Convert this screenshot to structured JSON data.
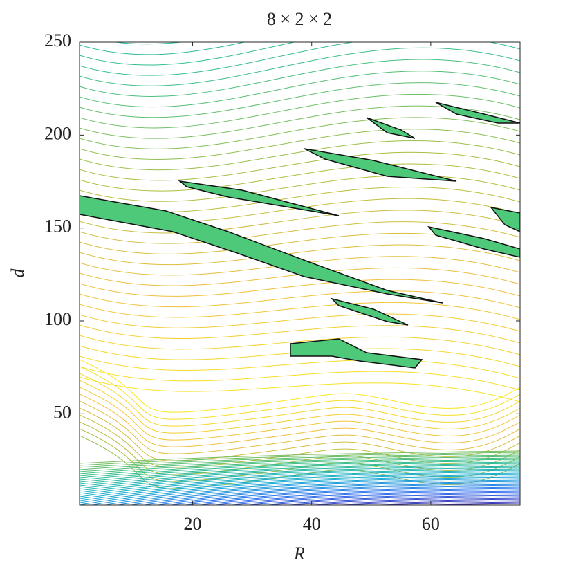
{
  "chart_data": {
    "type": "contour",
    "title": "8 × 2 × 2",
    "xlabel": "R",
    "ylabel": "d",
    "xlim": [
      1,
      75
    ],
    "ylim": [
      1,
      250
    ],
    "xticks": [
      20,
      40,
      60
    ],
    "yticks": [
      50,
      100,
      150,
      200,
      250
    ]
  }
}
